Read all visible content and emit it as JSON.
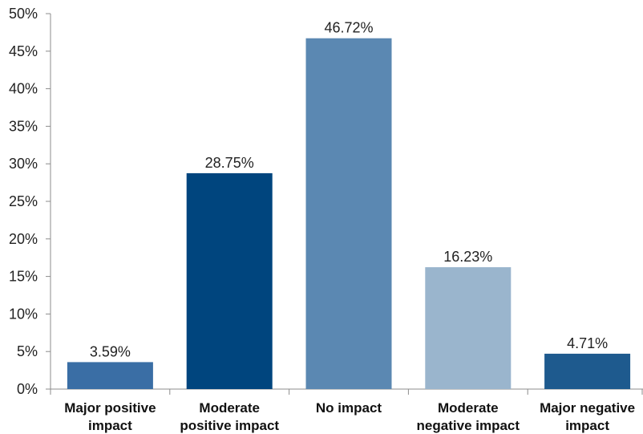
{
  "chart_data": {
    "type": "bar",
    "categories": [
      [
        "Major positive",
        "impact"
      ],
      [
        "Moderate",
        "positive impact"
      ],
      [
        "No impact"
      ],
      [
        "Moderate",
        "negative impact"
      ],
      [
        "Major negative",
        "impact"
      ]
    ],
    "values": [
      3.59,
      28.75,
      46.72,
      16.23,
      4.71
    ],
    "value_labels": [
      "3.59%",
      "28.75%",
      "46.72%",
      "16.23%",
      "4.71%"
    ],
    "bar_colors": [
      "#3a6ea5",
      "#00457e",
      "#5b88b2",
      "#9ab5cd",
      "#1e5a8e"
    ],
    "y_ticks": [
      0,
      5,
      10,
      15,
      20,
      25,
      30,
      35,
      40,
      45,
      50
    ],
    "y_tick_labels": [
      "0%",
      "5%",
      "10%",
      "15%",
      "20%",
      "25%",
      "30%",
      "35%",
      "40%",
      "45%",
      "50%"
    ],
    "ylim": [
      0,
      50
    ],
    "title": "",
    "xlabel": "",
    "ylabel": "",
    "grid": false,
    "legend": "none"
  }
}
